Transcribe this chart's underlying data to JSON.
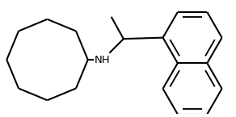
{
  "bg_color": "#ffffff",
  "line_color": "#000000",
  "nh_color": "#000000",
  "nh_text": "NH",
  "nh_fontsize": 9.5,
  "linewidth": 1.5,
  "fig_width": 2.92,
  "fig_height": 1.45,
  "dpi": 100
}
